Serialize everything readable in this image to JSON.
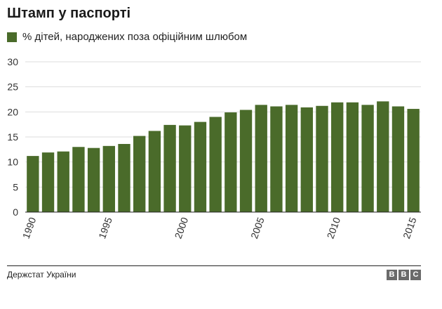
{
  "title": "Штамп у паспорті",
  "legend": {
    "label": "% дітей, народжених поза офіційним шлюбом",
    "color": "#4a6b2a"
  },
  "source": "Держстат України",
  "logo": [
    "B",
    "B",
    "C"
  ],
  "colors": {
    "bar": "#4a6b2a",
    "grid": "#dddddd",
    "axis": "#222222",
    "logo": "#6b6b6b"
  },
  "chart_data": {
    "type": "bar",
    "title": "Штамп у паспорті",
    "xlabel": "",
    "ylabel": "",
    "ylim": [
      0,
      30
    ],
    "yticks": [
      0,
      5,
      10,
      15,
      20,
      25,
      30
    ],
    "xtick_labels": [
      "1990",
      "1995",
      "2000",
      "2005",
      "2010",
      "2015"
    ],
    "grid": true,
    "legend_position": "top-left",
    "categories": [
      "1990",
      "1991",
      "1992",
      "1993",
      "1994",
      "1995",
      "1996",
      "1997",
      "1998",
      "1999",
      "2000",
      "2001",
      "2002",
      "2003",
      "2004",
      "2005",
      "2006",
      "2007",
      "2008",
      "2009",
      "2010",
      "2011",
      "2012",
      "2013",
      "2014",
      "2015"
    ],
    "series": [
      {
        "name": "% дітей, народжених поза офіційним шлюбом",
        "values": [
          11.2,
          11.9,
          12.1,
          13.0,
          12.8,
          13.2,
          13.6,
          15.2,
          16.2,
          17.4,
          17.3,
          18.0,
          19.0,
          19.9,
          20.4,
          21.4,
          21.1,
          21.4,
          20.9,
          21.2,
          21.9,
          21.9,
          21.4,
          22.1,
          21.1,
          20.6
        ]
      }
    ]
  }
}
